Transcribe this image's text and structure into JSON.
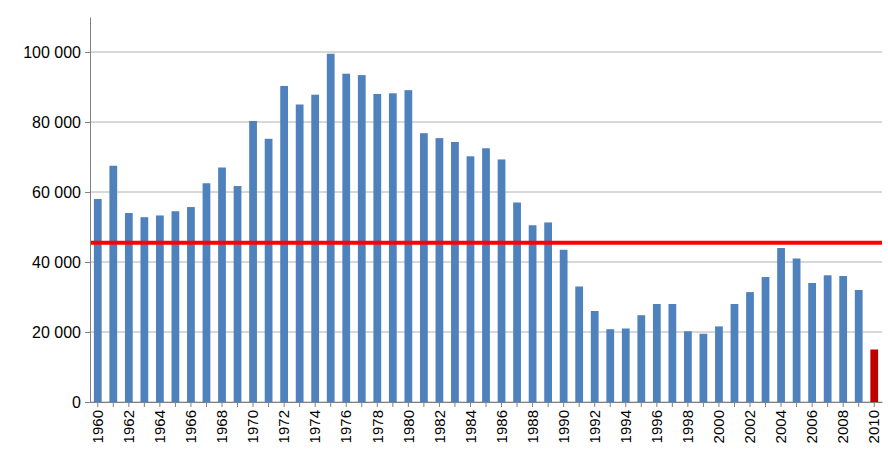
{
  "chart_data": {
    "type": "bar",
    "categories": [
      "1960",
      null,
      "1962",
      null,
      "1964",
      null,
      "1966",
      null,
      "1968",
      null,
      "1970",
      null,
      "1972",
      null,
      "1974",
      null,
      "1976",
      null,
      "1978",
      null,
      "1980",
      null,
      "1982",
      null,
      "1984",
      null,
      "1986",
      null,
      "1988",
      null,
      "1990",
      null,
      "1992",
      null,
      "1994",
      null,
      "1996",
      null,
      "1998",
      null,
      "2000",
      null,
      "2002",
      null,
      "2004",
      null,
      "2006",
      null,
      "2008",
      null,
      "2010"
    ],
    "values": [
      58000,
      67500,
      54000,
      52800,
      53300,
      54500,
      55700,
      62500,
      67000,
      61700,
      80300,
      75200,
      90300,
      85000,
      87800,
      99500,
      93800,
      93400,
      88000,
      88200,
      89100,
      76800,
      75400,
      74300,
      70200,
      72500,
      69300,
      57000,
      50500,
      51300,
      43500,
      33000,
      26000,
      20800,
      21000,
      24800,
      28000,
      28000,
      20200,
      19500,
      21600,
      28000,
      31400,
      35700,
      44000,
      41000,
      34000,
      36200,
      36000,
      32000,
      15000
    ],
    "colors": [
      "#4f81bd",
      "#4f81bd",
      "#4f81bd",
      "#4f81bd",
      "#4f81bd",
      "#4f81bd",
      "#4f81bd",
      "#4f81bd",
      "#4f81bd",
      "#4f81bd",
      "#4f81bd",
      "#4f81bd",
      "#4f81bd",
      "#4f81bd",
      "#4f81bd",
      "#4f81bd",
      "#4f81bd",
      "#4f81bd",
      "#4f81bd",
      "#4f81bd",
      "#4f81bd",
      "#4f81bd",
      "#4f81bd",
      "#4f81bd",
      "#4f81bd",
      "#4f81bd",
      "#4f81bd",
      "#4f81bd",
      "#4f81bd",
      "#4f81bd",
      "#4f81bd",
      "#4f81bd",
      "#4f81bd",
      "#4f81bd",
      "#4f81bd",
      "#4f81bd",
      "#4f81bd",
      "#4f81bd",
      "#4f81bd",
      "#4f81bd",
      "#4f81bd",
      "#4f81bd",
      "#4f81bd",
      "#4f81bd",
      "#4f81bd",
      "#4f81bd",
      "#4f81bd",
      "#4f81bd",
      "#4f81bd",
      "#4f81bd",
      "#c00000"
    ],
    "reference_line": {
      "value": 45500,
      "color": "#ff0000"
    },
    "ylim": [
      0,
      110000
    ],
    "yticks": [
      0,
      {
        "value": 20000,
        "label": "20 000"
      },
      {
        "value": 40000,
        "label": "40 000"
      },
      {
        "value": 60000,
        "label": "60 000"
      },
      {
        "value": 80000,
        "label": "80 000"
      },
      {
        "value": 100000,
        "label": "100 000"
      }
    ],
    "grid": true
  }
}
